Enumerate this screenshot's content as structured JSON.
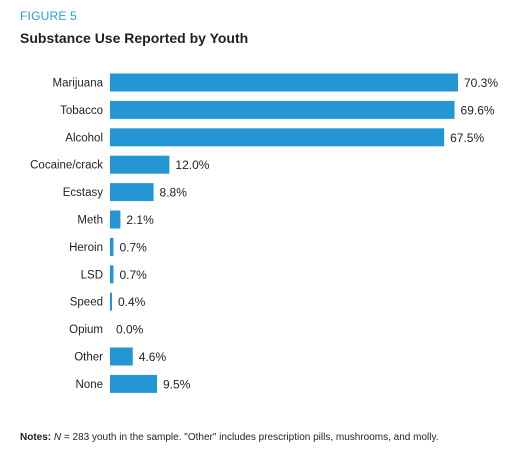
{
  "figure": {
    "label": "FIGURE 5",
    "title": "Substance Use Reported by Youth"
  },
  "notes": {
    "lead": "Notes:",
    "n_symbol": "N",
    "text": " = 283 youth in the sample. \"Other\" includes prescription pills, mushrooms, and molly."
  },
  "colors": {
    "bar": "#2596d4",
    "label_blue": "#2a9fd8",
    "text": "#231f20"
  },
  "chart_data": {
    "type": "bar",
    "orientation": "horizontal",
    "title": "Substance Use Reported by Youth",
    "unit": "%",
    "categories": [
      "Marijuana",
      "Tobacco",
      "Alcohol",
      "Cocaine/crack",
      "Ecstasy",
      "Meth",
      "Heroin",
      "LSD",
      "Speed",
      "Opium",
      "Other",
      "None"
    ],
    "values": [
      70.3,
      69.6,
      67.5,
      12.0,
      8.8,
      2.1,
      0.7,
      0.7,
      0.4,
      0.0,
      4.6,
      9.5
    ],
    "value_labels": [
      "70.3%",
      "69.6%",
      "67.5%",
      "12.0%",
      "8.8%",
      "2.1%",
      "0.7%",
      "0.7%",
      "0.4%",
      "0.0%",
      "4.6%",
      "9.5%"
    ],
    "xlim": [
      0,
      70.3
    ],
    "grid": false,
    "legend": "none"
  }
}
